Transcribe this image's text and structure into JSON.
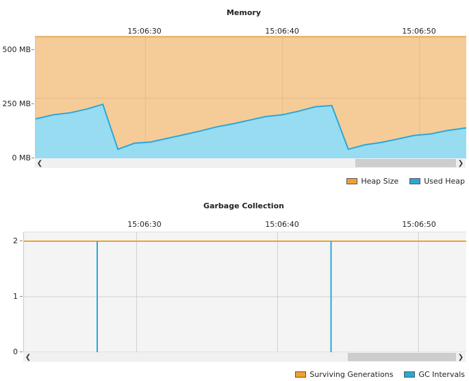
{
  "chart_data": [
    {
      "type": "area",
      "title": "Memory",
      "x_ticks": [
        "15:06:30",
        "15:06:40",
        "15:06:50"
      ],
      "y_ticks": [
        "0 MB",
        "250 MB",
        "500 MB"
      ],
      "y_tick_values": [
        0,
        250,
        500
      ],
      "ylim": [
        0,
        505
      ],
      "xlim_seconds": [
        22,
        53.4
      ],
      "x_tick_seconds": [
        30,
        40,
        50
      ],
      "x_axis_unit": "seconds past 15:06:00",
      "grid": true,
      "legend_position": "bottom-right",
      "series": [
        {
          "name": "Heap Size",
          "color": "#f0a030",
          "fill": "#f5cc98",
          "x": [
            22,
            53.4
          ],
          "values": [
            505,
            505
          ]
        },
        {
          "name": "Used Heap",
          "color": "#2aa7d9",
          "fill": "#98dcf2",
          "x": [
            22,
            23.3,
            24.5,
            25.7,
            26.9,
            28.0,
            29.2,
            30.4,
            31.6,
            32.8,
            34.0,
            35.2,
            36.4,
            37.6,
            38.8,
            40.0,
            41.2,
            42.4,
            43.6,
            44.8,
            46.0,
            47.2,
            48.4,
            49.6,
            50.8,
            52.0,
            53.4
          ],
          "values": [
            165,
            182,
            190,
            205,
            225,
            40,
            65,
            70,
            85,
            100,
            115,
            132,
            145,
            160,
            175,
            182,
            197,
            215,
            220,
            40,
            58,
            68,
            82,
            97,
            103,
            117,
            128
          ]
        }
      ],
      "legend": [
        "Heap Size",
        "Used Heap"
      ]
    },
    {
      "type": "line",
      "title": "Garbage Collection",
      "x_ticks": [
        "15:06:30",
        "15:06:40",
        "15:06:50"
      ],
      "y_ticks": [
        "0",
        "1",
        "2"
      ],
      "y_tick_values": [
        0,
        1,
        2
      ],
      "ylim": [
        0,
        2
      ],
      "xlim_seconds": [
        22,
        53.4
      ],
      "x_tick_seconds": [
        30,
        40,
        50
      ],
      "x_axis_unit": "seconds past 15:06:00",
      "grid": true,
      "legend_position": "bottom-right",
      "series": [
        {
          "name": "Surviving Generations",
          "color": "#f0a030",
          "x": [
            22,
            53.4
          ],
          "values": [
            2,
            2
          ]
        },
        {
          "name": "GC Intervals",
          "color": "#2aa7d9",
          "x": [
            27.2,
            43.8
          ],
          "values": [
            2,
            2
          ]
        }
      ],
      "legend": [
        "Surviving Generations",
        "GC Intervals"
      ]
    }
  ],
  "scrollbars": [
    {
      "thumb_start": 0.755,
      "thumb_end": 1.0
    },
    {
      "thumb_start": 0.745,
      "thumb_end": 1.0
    }
  ],
  "icons": {
    "left_arrow": "chevron-left-icon",
    "right_arrow": "chevron-right-icon"
  },
  "colors": {
    "grid": "#cfcfcf",
    "plot_bg_gc": "#f4f4f4"
  }
}
